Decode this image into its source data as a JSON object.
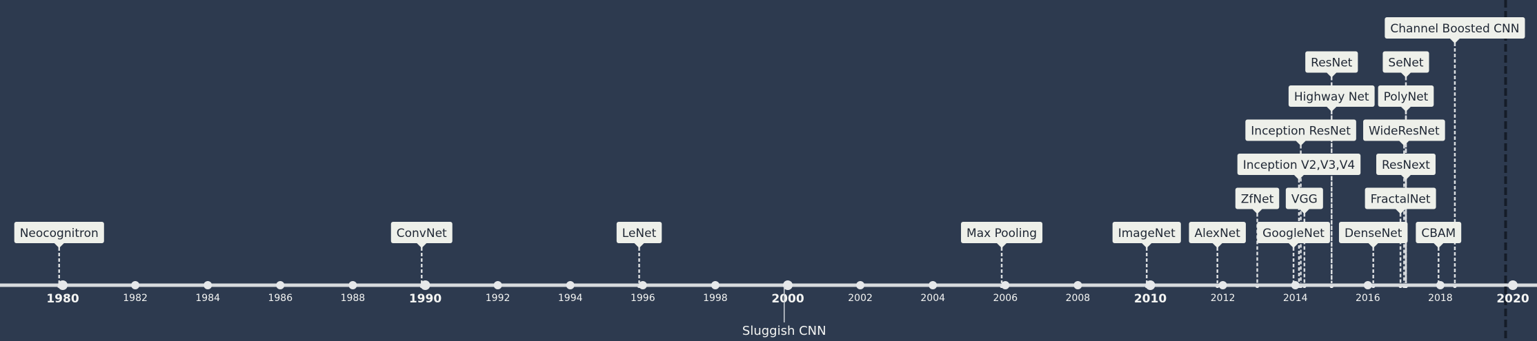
{
  "chart_data": {
    "type": "timeline",
    "axis": {
      "range": [
        1979,
        2020.3
      ],
      "minor_ticks": [
        "1982",
        "1984",
        "1986",
        "1988",
        "1992",
        "1994",
        "1996",
        "1998",
        "2002",
        "2004",
        "2006",
        "2008",
        "2012",
        "2014",
        "2016",
        "2018"
      ],
      "major_ticks": [
        "1980",
        "1990",
        "2000",
        "2010",
        "2020"
      ],
      "edge_fragment": "8",
      "current_marker_year": 2019.8
    },
    "era_label": {
      "text": "Sluggish CNN",
      "year": 1999.9
    },
    "events": [
      {
        "label": "Neocognitron",
        "year": 1979.9,
        "stack": 0
      },
      {
        "label": "ConvNet",
        "year": 1989.9,
        "stack": 0
      },
      {
        "label": "LeNet",
        "year": 1995.9,
        "stack": 0
      },
      {
        "label": "Max Pooling",
        "year": 2005.9,
        "stack": 0
      },
      {
        "label": "ImageNet",
        "year": 2009.9,
        "stack": 0
      },
      {
        "label": "AlexNet",
        "year": 2011.85,
        "stack": 0
      },
      {
        "label": "ZfNet",
        "year": 2012.95,
        "stack": 1
      },
      {
        "label": "GoogleNet",
        "year": 2013.95,
        "stack": 0
      },
      {
        "label": "VGG",
        "year": 2014.25,
        "stack": 1
      },
      {
        "label": "Inception V2,V3,V4",
        "year": 2014.1,
        "stack": 2
      },
      {
        "label": "Inception ResNet",
        "year": 2014.15,
        "stack": 3
      },
      {
        "label": "Highway Net",
        "year": 2015.0,
        "stack": 4
      },
      {
        "label": "ResNet",
        "year": 2015.0,
        "stack": 5
      },
      {
        "label": "DenseNet",
        "year": 2016.15,
        "stack": 0
      },
      {
        "label": "FractalNet",
        "year": 2016.9,
        "stack": 1
      },
      {
        "label": "ResNext",
        "year": 2017.05,
        "stack": 2
      },
      {
        "label": "WideResNet",
        "year": 2017.0,
        "stack": 3
      },
      {
        "label": "PolyNet",
        "year": 2017.05,
        "stack": 4
      },
      {
        "label": "SeNet",
        "year": 2017.05,
        "stack": 5
      },
      {
        "label": "CBAM",
        "year": 2017.95,
        "stack": 0
      },
      {
        "label": "Channel Boosted CNN",
        "year": 2018.4,
        "stack": 6
      }
    ]
  }
}
